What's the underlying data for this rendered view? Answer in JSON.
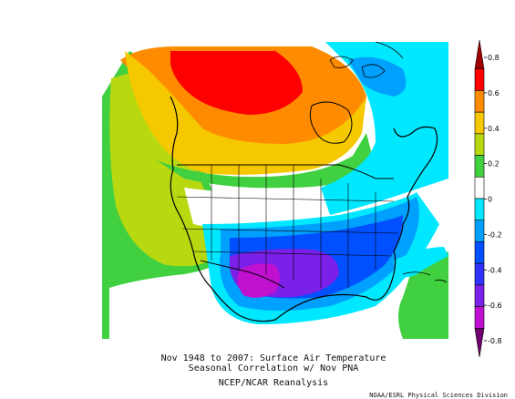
{
  "map": {
    "caption_line1": "Nov 1948 to 2007: Surface Air Temperature",
    "caption_line2": "Seasonal Correlation w/ Nov PNA",
    "source": "NCEP/NCAR Reanalysis",
    "credit": "NOAA/ESRL Physical Sciences Division"
  },
  "colorbar": {
    "ticks": [
      "0.8",
      "0.6",
      "0.4",
      "0.2",
      "0",
      "-0.2",
      "-0.4",
      "-0.6",
      "-0.8"
    ],
    "colors": {
      "c_p08": "#a00000",
      "c_p06": "#ff0000",
      "c_p04": "#ff8c00",
      "c_p03": "#f5c800",
      "c_p02": "#b8d810",
      "c_p01": "#40d040",
      "c_zero": "#ffffff",
      "c_m01": "#00e8ff",
      "c_m02": "#00a0ff",
      "c_m03": "#0050ff",
      "c_m04": "#3030ff",
      "c_m05": "#7a20e8",
      "c_m06": "#c010d0",
      "c_m08": "#700070"
    }
  }
}
